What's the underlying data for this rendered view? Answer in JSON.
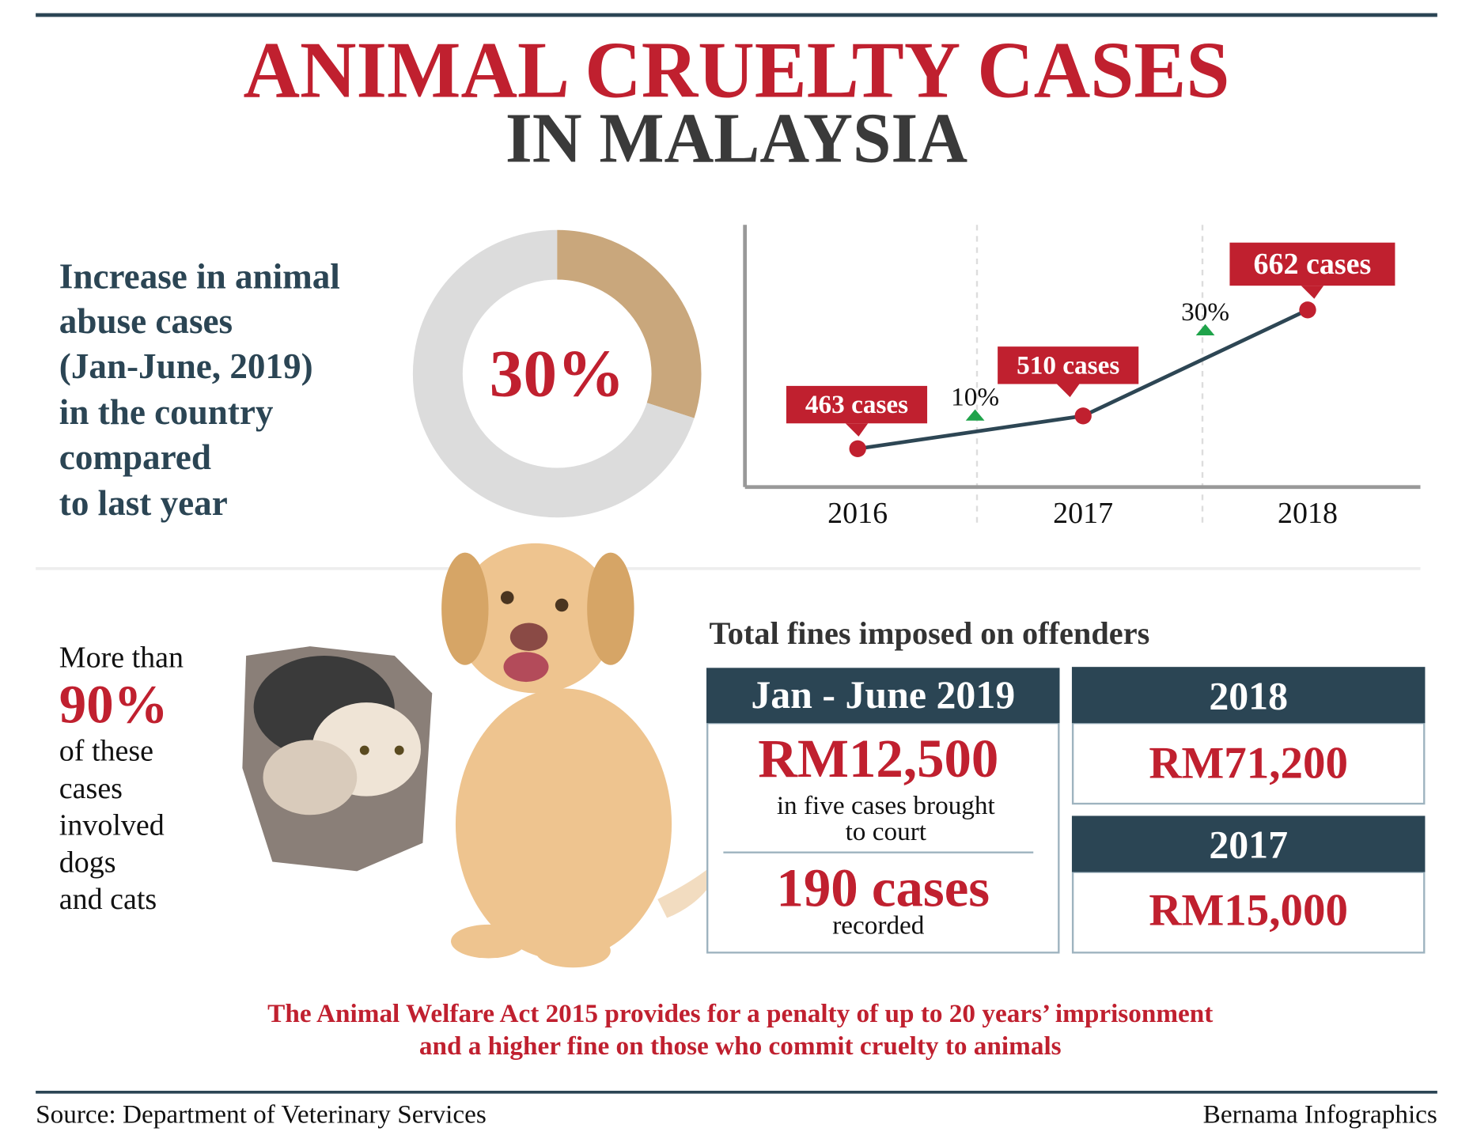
{
  "header": {
    "title": "ANIMAL CRUELTY CASES",
    "subtitle": "IN MALAYSIA"
  },
  "increase_text": [
    "Increase in animal",
    "abuse cases",
    "(Jan-June, 2019)",
    "in the country",
    "compared",
    "to last year"
  ],
  "chart_data": [
    {
      "type": "pie",
      "donut": true,
      "values": [
        30,
        70
      ],
      "colors": [
        "#c9a77c",
        "#dcdcdc"
      ],
      "center_label": "30%"
    },
    {
      "type": "line",
      "categories": [
        "2016",
        "2017",
        "2018"
      ],
      "values": [
        463,
        510,
        662
      ],
      "value_labels": [
        "463 cases",
        "510 cases",
        "662 cases"
      ],
      "color": "#2d4654",
      "marker_color": "#c0202f",
      "ylim": [
        408,
        784
      ],
      "annotations": [
        {
          "label": "10%"
        },
        {
          "label": "30%"
        }
      ]
    }
  ],
  "share": {
    "lead": "More than",
    "value": "90%",
    "rest": [
      "of these",
      "cases",
      "involved",
      "dogs",
      "and cats"
    ]
  },
  "fines": {
    "title": "Total fines imposed on offenders",
    "boxes": [
      {
        "period": "Jan - June 2019",
        "amount": "RM12,500",
        "note": [
          "in five cases brought",
          "to court"
        ],
        "cases": "190 cases",
        "cases_note": "recorded"
      },
      {
        "period": "2018",
        "amount": "RM71,200"
      },
      {
        "period": "2017",
        "amount": "RM15,000"
      }
    ]
  },
  "footnote": [
    "The Animal Welfare Act 2015 provides for a penalty of up to 20 years’ imprisonment",
    "and a higher fine on those who commit cruelty to animals"
  ],
  "source": "Source: Department of Veterinary Services",
  "credit": "Bernama Infographics"
}
